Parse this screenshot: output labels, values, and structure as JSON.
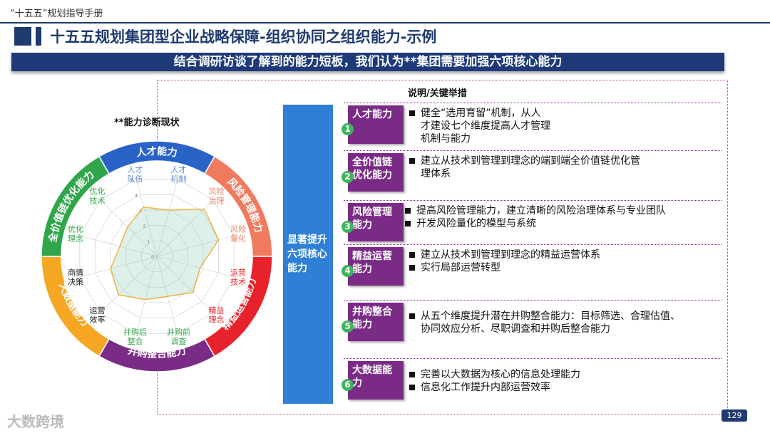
{
  "header": {
    "top_label": "“十五五”规划指导手册",
    "title": "十五五规划集团型企业战略保障-组织协同之组织能力-示例",
    "banner": "结合调研访谈了解到的能力短板，我们认为**集团需要加强六项核心能力"
  },
  "radar": {
    "title": "**能力诊断现状",
    "ring_segments": [
      {
        "label": "人才能力",
        "color": "#2a63c8"
      },
      {
        "label": "风险管理能力",
        "color": "#f07a5e"
      },
      {
        "label": "精益运营能力",
        "color": "#e8222a"
      },
      {
        "label": "并购整合能力",
        "color": "#7a2b86"
      },
      {
        "label": "大数据能力",
        "color": "#f5a623"
      },
      {
        "label": "全价值链优化能力",
        "color": "#2fa64a"
      }
    ],
    "axes": [
      {
        "line1": "人才",
        "line2": "队伍",
        "color": "#5b8ad8"
      },
      {
        "line1": "人才",
        "line2": "机制",
        "color": "#5b8ad8"
      },
      {
        "line1": "风险",
        "line2": "治理",
        "color": "#e9866a"
      },
      {
        "line1": "风险",
        "line2": "量化",
        "color": "#e9866a"
      },
      {
        "line1": "运营",
        "line2": "技术",
        "color": "#e8222a"
      },
      {
        "line1": "精益",
        "line2": "理念",
        "color": "#e8222a"
      },
      {
        "line1": "并购前",
        "line2": "调查",
        "color": "#2fa64a"
      },
      {
        "line1": "并购后",
        "line2": "整合",
        "color": "#2fa64a"
      },
      {
        "line1": "运营",
        "line2": "效率",
        "color": "#222222"
      },
      {
        "line1": "商情",
        "line2": "决策",
        "color": "#222222"
      },
      {
        "line1": "优化",
        "line2": "理念",
        "color": "#2fa64a"
      },
      {
        "line1": "优化",
        "line2": "技术",
        "color": "#2fa64a"
      }
    ],
    "scale_ticks": [
      "0",
      "1",
      "2",
      "3",
      "4",
      "5"
    ],
    "values": [
      3.2,
      3.0,
      4.2,
      4.0,
      2.8,
      3.2,
      2.6,
      2.8,
      3.4,
      3.0,
      2.4,
      2.6
    ],
    "max": 5
  },
  "notes_header": "说明/关键举措",
  "center_label": "显著提升六项核心能力",
  "capabilities": [
    {
      "num": "1",
      "name": "人才能力",
      "bullets": [
        [
          "健全“选用育留”机制，从人",
          "才建设七个维度提高人才管理",
          "机制与能力"
        ]
      ]
    },
    {
      "num": "2",
      "name": "全价值链优化能力",
      "bullets": [
        [
          "建立从技术到管理到理念的端到端全价值链优化管",
          "理体系"
        ]
      ]
    },
    {
      "num": "3",
      "name": "风险管理能力",
      "bullets": [
        [
          "提高风险管理能力，建立清晰的风险治理体系与专业团队"
        ],
        [
          "开发风险量化的模型与系统"
        ]
      ]
    },
    {
      "num": "4",
      "name": "精益运营能力",
      "bullets": [
        [
          "建立从技术到管理到理念的精益运营体系"
        ],
        [
          "实行局部运营转型"
        ]
      ]
    },
    {
      "num": "5",
      "name": "并购整合能力",
      "bullets": [
        [
          "从五个维度提升潜在并购整合能力：目标筛选、合理估值、",
          "协同效应分析、尽职调查和并购后整合能力"
        ]
      ]
    },
    {
      "num": "6",
      "name": "大数据能力",
      "bullets": [
        [
          "完善以大数据为核心的信息处理能力"
        ],
        [
          "信息化工作提升内部运营效率"
        ]
      ]
    }
  ],
  "footer": {
    "page": "129",
    "watermark": "大数跨境"
  }
}
